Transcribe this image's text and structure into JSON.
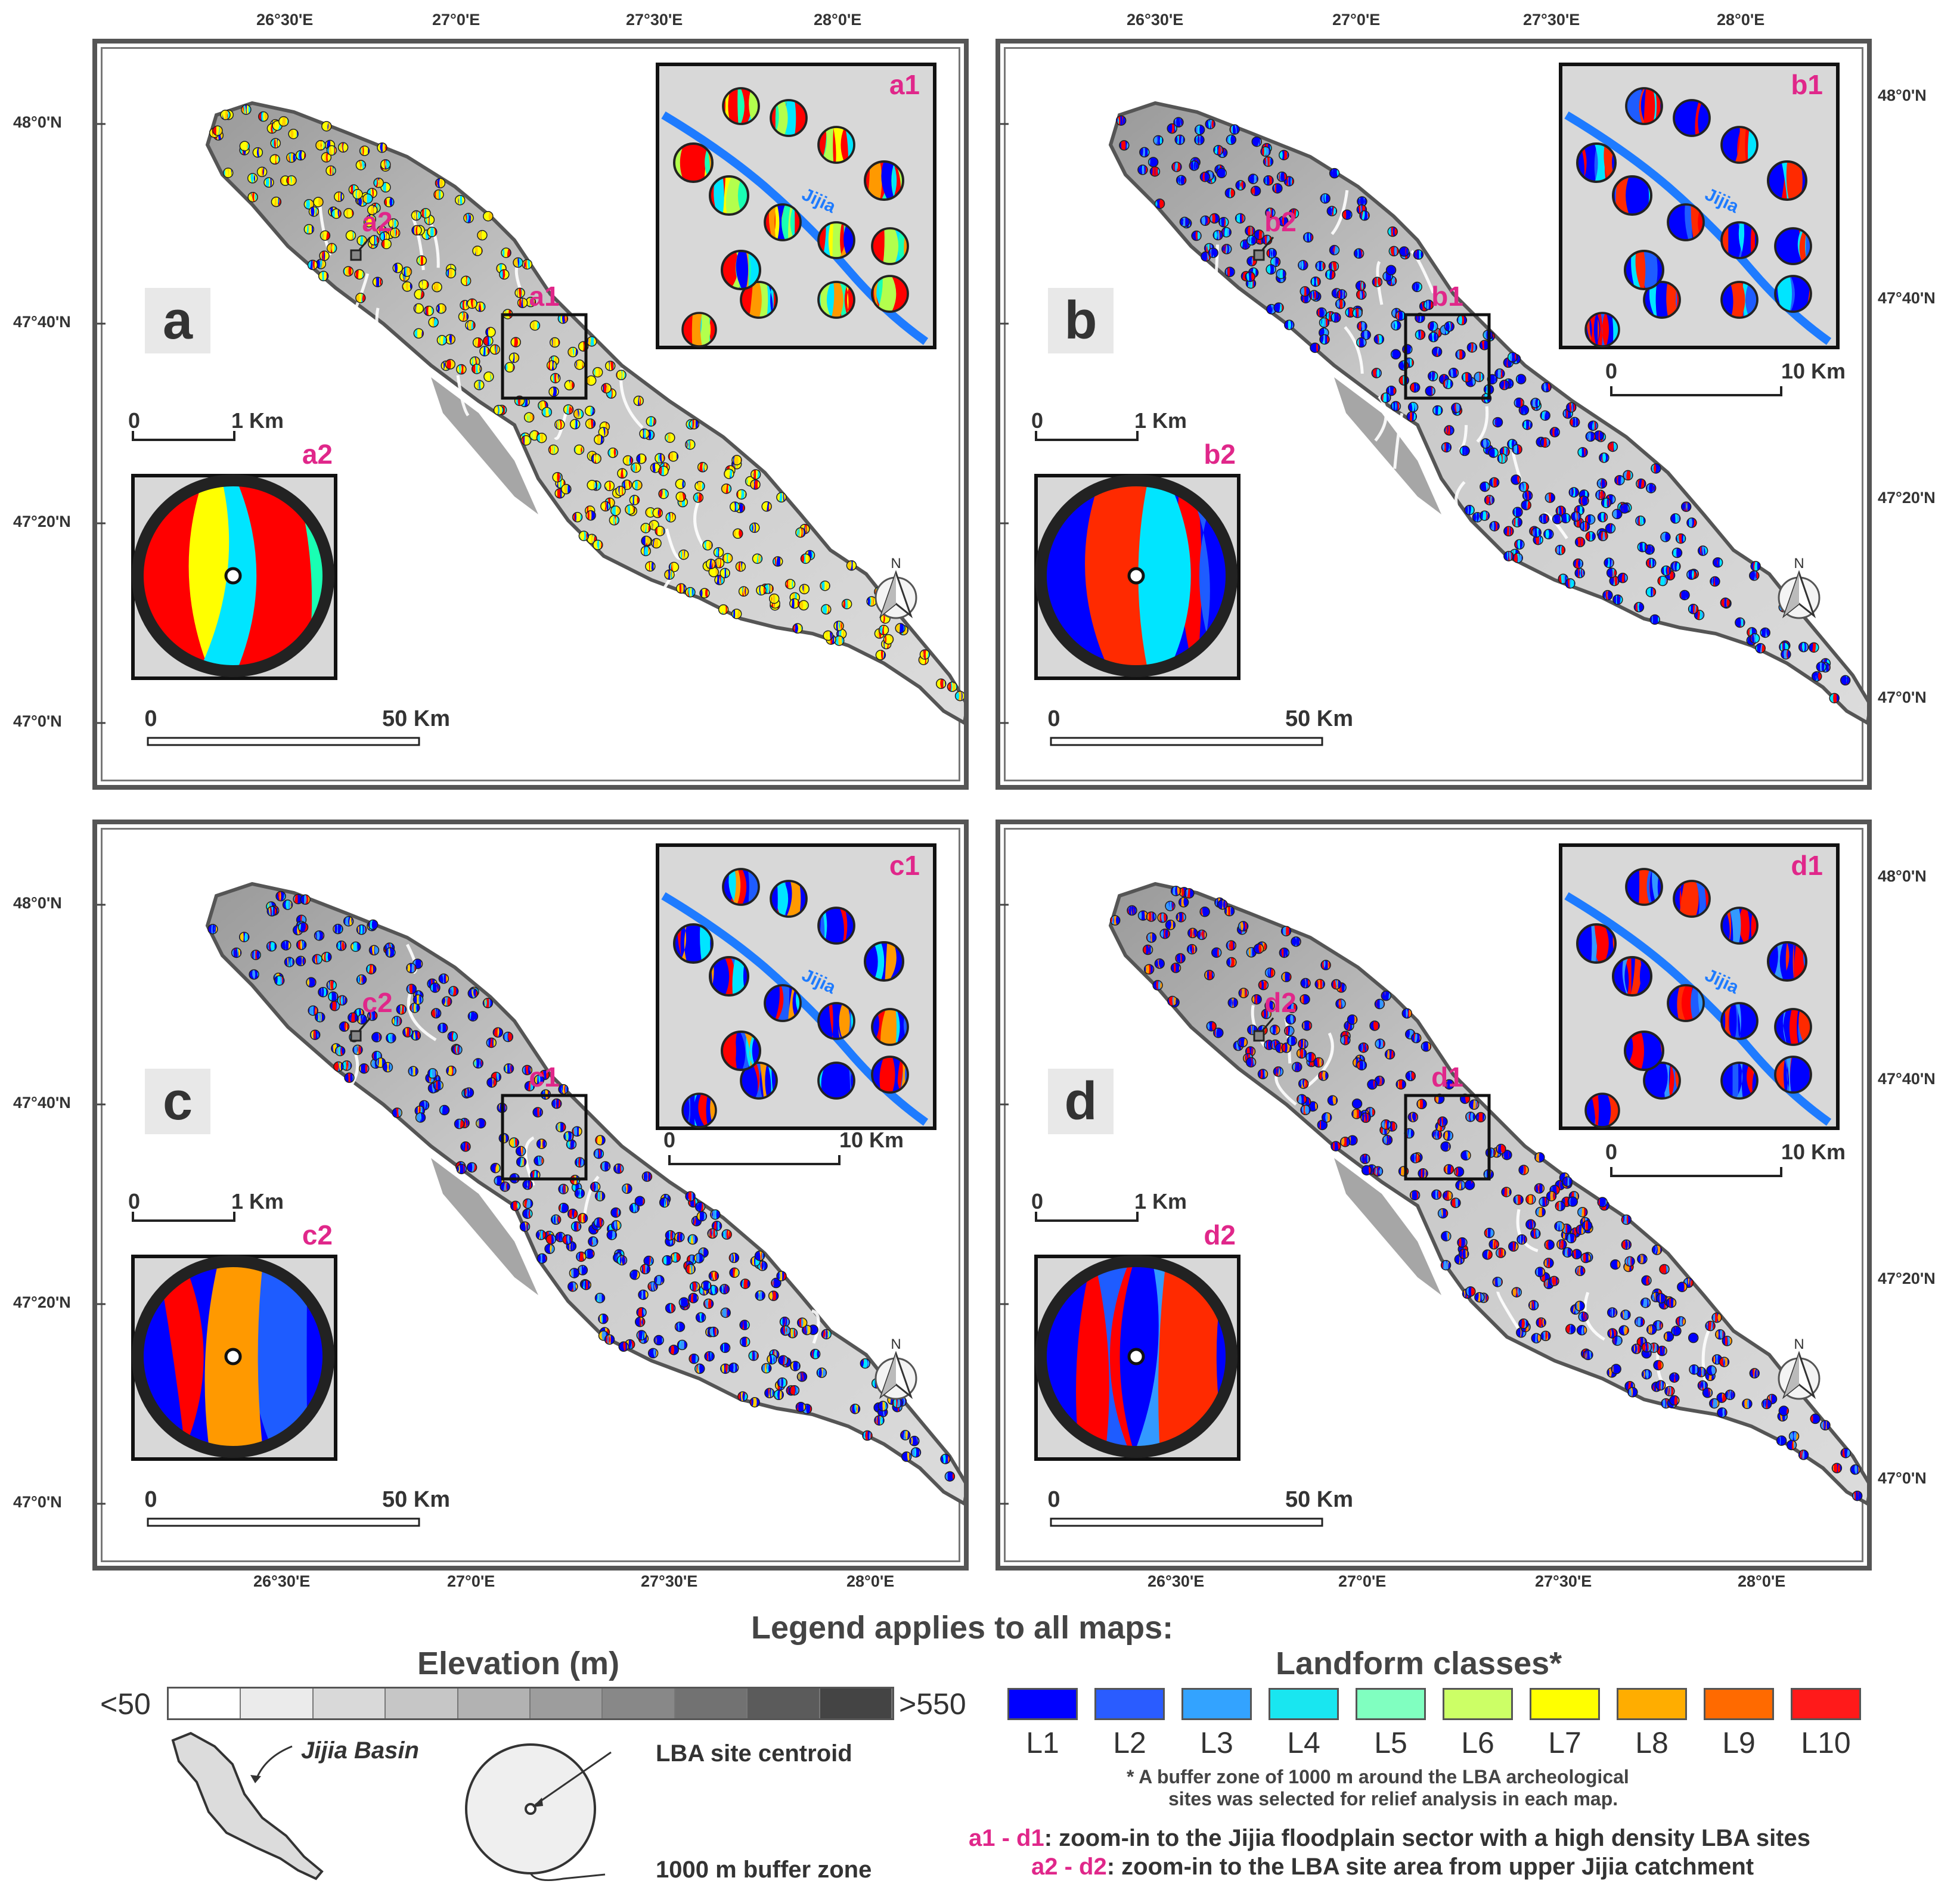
{
  "maps": [
    {
      "id": "a",
      "label": "a",
      "inset_zoom_label": "a1",
      "inset_site_label": "a2",
      "box_label": "a1",
      "site_tag": "a2",
      "palette": [
        "#ff0000",
        "#ffff00",
        "#00e5ff",
        "#19ffb3",
        "#b3ff4d",
        "#ff9900",
        "#0000ff"
      ],
      "site_palette": [
        "#ffff00",
        "#00e5ff",
        "#0000ff",
        "#ff0000",
        "#ffcc00"
      ],
      "zoom_scale": {
        "zero": "",
        "end": ""
      }
    },
    {
      "id": "b",
      "label": "b",
      "inset_zoom_label": "b1",
      "inset_site_label": "b2",
      "box_label": "b1",
      "site_tag": "b2",
      "palette": [
        "#0000ff",
        "#ff0000",
        "#1e5cff",
        "#00e5ff",
        "#ff2a00"
      ],
      "site_palette": [
        "#0000ff",
        "#ff0000",
        "#00e5ff",
        "#3399ff"
      ],
      "zoom_scale": {
        "zero": "0",
        "end": "10 Km"
      }
    },
    {
      "id": "c",
      "label": "c",
      "inset_zoom_label": "c1",
      "inset_site_label": "c2",
      "box_label": "c1",
      "site_tag": "c2",
      "palette": [
        "#0000ff",
        "#ff0000",
        "#1e5cff",
        "#00e5ff",
        "#ff9900"
      ],
      "site_palette": [
        "#0000ff",
        "#ff0000",
        "#00e5ff",
        "#ffcc00",
        "#3399ff"
      ],
      "zoom_scale": {
        "zero": "0",
        "end": "10 Km"
      }
    },
    {
      "id": "d",
      "label": "d",
      "inset_zoom_label": "d1",
      "inset_site_label": "d2",
      "box_label": "d1",
      "site_tag": "d2",
      "palette": [
        "#0000ff",
        "#ff0000",
        "#1e5cff",
        "#3399ff",
        "#ff2a00"
      ],
      "site_palette": [
        "#0000ff",
        "#ff0000",
        "#3399ff",
        "#ff9900"
      ],
      "zoom_scale": {
        "zero": "0",
        "end": "10 Km"
      }
    }
  ],
  "common": {
    "river_label": "Jijia",
    "site_scale": {
      "zero": "0",
      "end": "1 Km"
    },
    "basin_scale": {
      "zero": "0",
      "end": "50 Km"
    },
    "north_arrow": "N"
  },
  "axes": {
    "lon_labels": [
      "26°30'E",
      "27°0'E",
      "27°30'E",
      "28°0'E"
    ],
    "lat_labels": [
      "48°0'N",
      "47°40'N",
      "47°20'N",
      "47°0'N"
    ]
  },
  "legend": {
    "title": "Legend applies to all maps:",
    "elevation_title": "Elevation (m)",
    "elevation_low": "<50",
    "elevation_high": ">550",
    "elevation_colors": [
      "#ffffff",
      "#ebebeb",
      "#d9d9d9",
      "#c6c6c6",
      "#b2b2b2",
      "#9d9d9d",
      "#888888",
      "#727272",
      "#5b5b5b",
      "#444444"
    ],
    "basin_label": "Jijia Basin",
    "centroid_label": "LBA site centroid",
    "buffer_label": "1000 m buffer zone",
    "landform_title": "Landform classes*",
    "landform_classes": [
      {
        "label": "L1",
        "color": "#0000ff"
      },
      {
        "label": "L2",
        "color": "#2a5cff"
      },
      {
        "label": "L3",
        "color": "#33a3ff"
      },
      {
        "label": "L4",
        "color": "#19e6f0"
      },
      {
        "label": "L5",
        "color": "#80ffc0"
      },
      {
        "label": "L6",
        "color": "#ccff66"
      },
      {
        "label": "L7",
        "color": "#ffff00"
      },
      {
        "label": "L8",
        "color": "#ffad00"
      },
      {
        "label": "L9",
        "color": "#ff6a00"
      },
      {
        "label": "L10",
        "color": "#ff1a1a"
      }
    ],
    "note_line1": "* A buffer zone of 1000 m  around the LBA archeological",
    "note_line2": "sites was selected for relief analysis in each map.",
    "zoom1_key": "a1 - d1",
    "zoom1_text": ": zoom-in to the Jijia floodplain sector with a high density LBA sites",
    "zoom2_key": "a2 - d2",
    "zoom2_text": ": zoom-in to the LBA site area from upper Jijia catchment",
    "accent_color": "#e0278a"
  }
}
